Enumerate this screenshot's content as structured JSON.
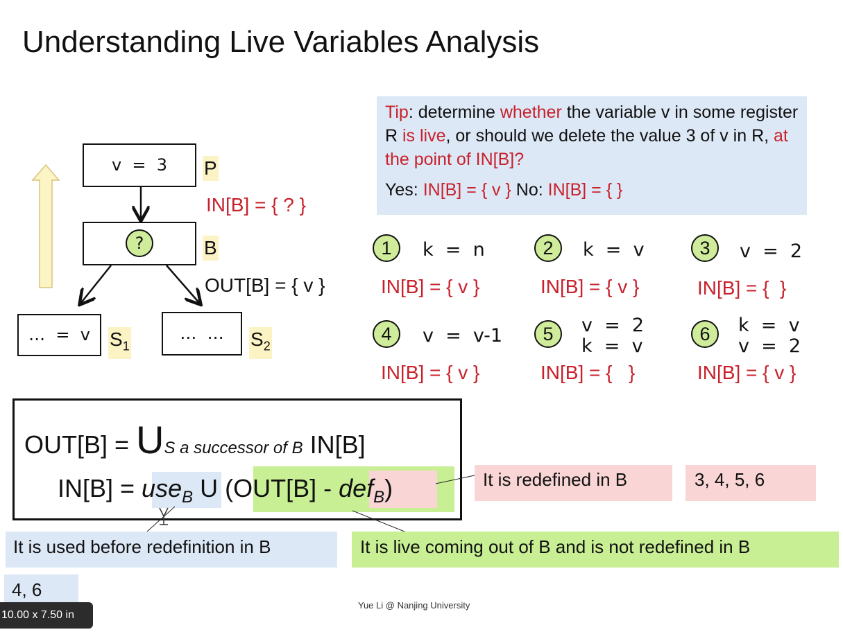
{
  "title": "Understanding Live Variables Analysis",
  "tip": {
    "p1": "Tip",
    "p2": ": determine ",
    "p3": "whether",
    "p4": " the variable v in some register R ",
    "p5": "is live",
    "p6": ", or should we delete the value 3 of v in R, ",
    "p7": "at the point of IN[B]?",
    "yes_label": "Yes: ",
    "yes_value": "IN[B] = { v }",
    "no_label": " No: ",
    "no_value": "IN[B] = { }"
  },
  "cfg": {
    "p_stmt": "v  =  3",
    "p_label": "P",
    "in_label": "IN[B] = { ? }",
    "b_mark": "?",
    "b_label": "B",
    "out_label": "OUT[B] = { v }",
    "s1_stmt": "…  =  v",
    "s1_label": "S",
    "s1_sub": "1",
    "s2_stmt": "…  …",
    "s2_label": "S",
    "s2_sub": "2"
  },
  "cases": [
    {
      "num": "1",
      "stmt": "k  =  n",
      "result": "IN[B] = { v }"
    },
    {
      "num": "2",
      "stmt": "k  =  v",
      "result": "IN[B] = { v }"
    },
    {
      "num": "3",
      "stmt": "v  =  2",
      "result": "IN[B] = {  }"
    },
    {
      "num": "4",
      "stmt": "v  =  v-1",
      "result": "IN[B] = { v }"
    },
    {
      "num": "5",
      "stmt": "v  =  2\nk  =  v",
      "result": "IN[B] = {   }"
    },
    {
      "num": "6",
      "stmt": "k  =  v\nv  =  2",
      "result": "IN[B] = { v }"
    }
  ],
  "formula": {
    "line1_lhs": "OUT[B] = ",
    "union": "U",
    "union_sub": "S a successor of B",
    "line1_rhs": " IN[B]",
    "line2_lhs": "IN[B] = ",
    "use": "use",
    "use_sub": "B",
    "mid": " U (OUT[B] - ",
    "def": "def",
    "def_sub": "B",
    "close": ")"
  },
  "notes": {
    "redefined": "It is redefined in B",
    "redefined_cases": "3,  4,  5,  6",
    "used": "It is used before redefinition in B",
    "used_cases": "4,  6",
    "live": "It is live coming out of B and is not redefined in B"
  },
  "footer": "Yue Li @ Nanjing University",
  "dimensions_badge": "10.00 x 7.50 in",
  "colors": {
    "red": "#c8212b",
    "green": "#c9ef95",
    "blue": "#dde8f6",
    "pink": "#f9d5d5",
    "yellow": "#fcf3c4"
  }
}
